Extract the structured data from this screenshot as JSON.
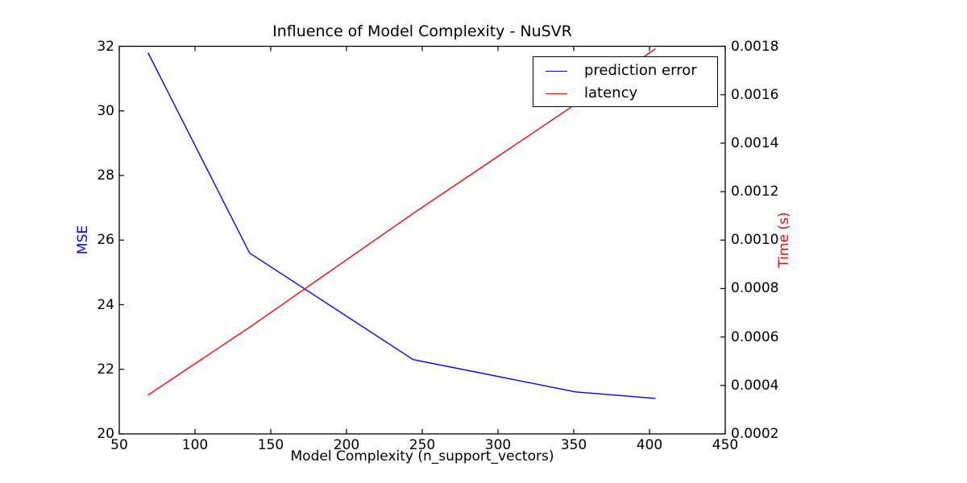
{
  "chart_data": {
    "type": "line",
    "title": "Influence of Model Complexity - NuSVR",
    "xlabel": "Model Complexity (n_support_vectors)",
    "grid": false,
    "frame_color": "#000000",
    "background_color": "#ffffff",
    "x": [
      69,
      136,
      244,
      351,
      404
    ],
    "series": [
      {
        "name": "prediction error",
        "axis": "left",
        "color": "#0000ff",
        "values": [
          31.8,
          25.6,
          22.3,
          21.3,
          21.1
        ]
      },
      {
        "name": "latency",
        "axis": "right",
        "color": "#ff0000",
        "values": [
          0.00036,
          0.00064,
          0.00111,
          0.00156,
          0.00179
        ]
      }
    ],
    "x_axis": {
      "lim": [
        50,
        450
      ],
      "ticks": [
        50,
        100,
        150,
        200,
        250,
        300,
        350,
        400,
        450
      ]
    },
    "left_axis": {
      "label": "MSE",
      "color": "#0000ff",
      "lim": [
        20,
        32
      ],
      "ticks": [
        20,
        22,
        24,
        26,
        28,
        30,
        32
      ]
    },
    "right_axis": {
      "label": "Time (s)",
      "color": "#ff0000",
      "lim": [
        0.0002,
        0.0018
      ],
      "tick_labels": [
        "0.0002",
        "0.0004",
        "0.0006",
        "0.0008",
        "0.0010",
        "0.0012",
        "0.0014",
        "0.0016",
        "0.0018"
      ]
    },
    "legend": {
      "position": "upper right",
      "entries": [
        "prediction error",
        "latency"
      ]
    }
  }
}
